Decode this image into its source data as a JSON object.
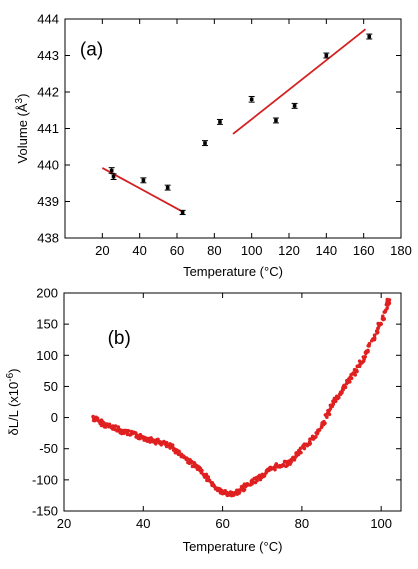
{
  "chart_data": [
    {
      "type": "scatter",
      "panel_label": "(a)",
      "xlabel": "Temperature (°C)",
      "ylabel": "Volume (Å³)",
      "ylabel_main": "Volume (Å",
      "ylabel_sup": "3",
      "ylabel_end": ")",
      "xlim": [
        0,
        180
      ],
      "ylim": [
        438,
        444
      ],
      "xticks": [
        20,
        40,
        60,
        80,
        100,
        120,
        140,
        160,
        180
      ],
      "yticks": [
        438,
        439,
        440,
        441,
        442,
        443,
        444
      ],
      "point_color": "#000000",
      "fit_color": "#d42020",
      "points": [
        {
          "x": 25,
          "y": 439.85,
          "err": 0.05
        },
        {
          "x": 26,
          "y": 439.68,
          "err": 0.05
        },
        {
          "x": 42,
          "y": 439.58,
          "err": 0.04
        },
        {
          "x": 55,
          "y": 439.38,
          "err": 0.04
        },
        {
          "x": 63,
          "y": 438.7,
          "err": 0.03
        },
        {
          "x": 75,
          "y": 440.6,
          "err": 0.04
        },
        {
          "x": 83,
          "y": 441.18,
          "err": 0.04
        },
        {
          "x": 100,
          "y": 441.8,
          "err": 0.05
        },
        {
          "x": 113,
          "y": 441.22,
          "err": 0.04
        },
        {
          "x": 123,
          "y": 441.62,
          "err": 0.04
        },
        {
          "x": 140,
          "y": 443.0,
          "err": 0.04
        },
        {
          "x": 163,
          "y": 443.52,
          "err": 0.04
        }
      ],
      "fits": [
        {
          "x": [
            20,
            63
          ],
          "y": [
            439.92,
            438.72
          ]
        },
        {
          "x": [
            90,
            161
          ],
          "y": [
            440.85,
            443.72
          ]
        }
      ]
    },
    {
      "type": "scatter",
      "panel_label": "(b)",
      "xlabel": "Temperature (°C)",
      "ylabel": "δL/L (x10⁻⁶)",
      "ylabel_main": "δL/L (x10",
      "ylabel_sup": "-6",
      "ylabel_end": ")",
      "xlim": [
        20,
        105
      ],
      "ylim": [
        -150,
        200
      ],
      "xticks": [
        20,
        40,
        60,
        80,
        100
      ],
      "yticks": [
        -150,
        -100,
        -50,
        0,
        50,
        100,
        150,
        200
      ],
      "point_color": "#e02020",
      "points": [
        [
          27.5,
          0
        ],
        [
          28,
          -3
        ],
        [
          29,
          -6
        ],
        [
          30,
          -10
        ],
        [
          31,
          -13
        ],
        [
          32,
          -15
        ],
        [
          33,
          -17
        ],
        [
          34,
          -20
        ],
        [
          35,
          -22
        ],
        [
          36,
          -24
        ],
        [
          37,
          -26
        ],
        [
          38,
          -28
        ],
        [
          39,
          -30
        ],
        [
          40,
          -32
        ],
        [
          41,
          -34
        ],
        [
          42,
          -36
        ],
        [
          43,
          -38
        ],
        [
          44,
          -39
        ],
        [
          45,
          -41
        ],
        [
          46,
          -44
        ],
        [
          47,
          -47
        ],
        [
          48,
          -52
        ],
        [
          49,
          -56
        ],
        [
          50,
          -62
        ],
        [
          51,
          -67
        ],
        [
          52,
          -72
        ],
        [
          53,
          -77
        ],
        [
          54,
          -83
        ],
        [
          55,
          -89
        ],
        [
          56,
          -96
        ],
        [
          57,
          -103
        ],
        [
          58,
          -110
        ],
        [
          59,
          -116
        ],
        [
          60,
          -120
        ],
        [
          61,
          -122
        ],
        [
          62,
          -123
        ],
        [
          63,
          -122
        ],
        [
          64,
          -119
        ],
        [
          65,
          -115
        ],
        [
          66,
          -110
        ],
        [
          67,
          -106
        ],
        [
          68,
          -101
        ],
        [
          69,
          -97
        ],
        [
          70,
          -93
        ],
        [
          71,
          -89
        ],
        [
          72,
          -84
        ],
        [
          73,
          -80
        ],
        [
          74,
          -77
        ],
        [
          75,
          -75
        ],
        [
          76,
          -74
        ],
        [
          77,
          -72
        ],
        [
          78,
          -66
        ],
        [
          79,
          -58
        ],
        [
          80,
          -51
        ],
        [
          81,
          -44
        ],
        [
          82,
          -38
        ],
        [
          83,
          -32
        ],
        [
          84,
          -23
        ],
        [
          85,
          -13
        ],
        [
          86,
          -2
        ],
        [
          87,
          12
        ],
        [
          88,
          24
        ],
        [
          89,
          33
        ],
        [
          90,
          42
        ],
        [
          91,
          52
        ],
        [
          92,
          61
        ],
        [
          93,
          70
        ],
        [
          94,
          80
        ],
        [
          95,
          90
        ],
        [
          96,
          101
        ],
        [
          97,
          113
        ],
        [
          98,
          126
        ],
        [
          99,
          140
        ],
        [
          100,
          154
        ],
        [
          101,
          170
        ],
        [
          101.8,
          186
        ]
      ]
    }
  ]
}
